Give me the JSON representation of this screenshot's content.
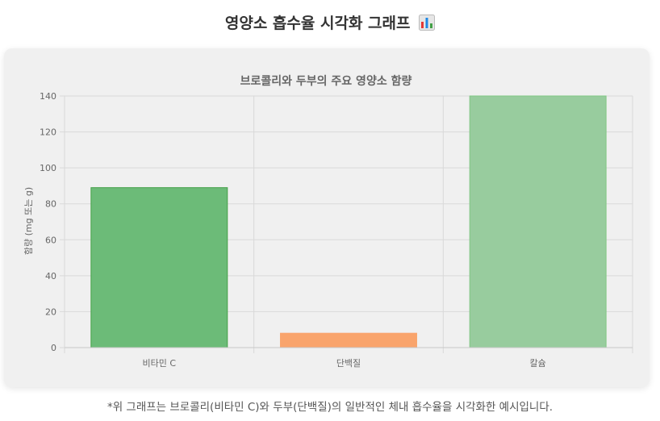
{
  "page": {
    "title": "영양소 흡수율 시각화 그래프",
    "title_icon": "bar-chart-icon",
    "footnote": "*위 그래프는 브로콜리(비타민 C)와 두부(단백질)의 일반적인 체내 흡수율을 시각화한 예시입니다."
  },
  "chart_data": {
    "type": "bar",
    "title": "브로콜리와 두부의 주요 영양소 함량",
    "xlabel": "",
    "ylabel": "함량 (mg 또는 g)",
    "categories": [
      "비타민 C",
      "단백질",
      "칼슘"
    ],
    "values": [
      89,
      8,
      140
    ],
    "colors": [
      "#6cbb78",
      "#f9a46c",
      "#98cc9e"
    ],
    "border_colors": [
      "#43a047",
      "#f9a46c",
      "#81c784"
    ],
    "ylim": [
      0,
      140
    ],
    "yticks": [
      0,
      20,
      40,
      60,
      80,
      100,
      120,
      140
    ],
    "grid": true,
    "legend": "none"
  }
}
